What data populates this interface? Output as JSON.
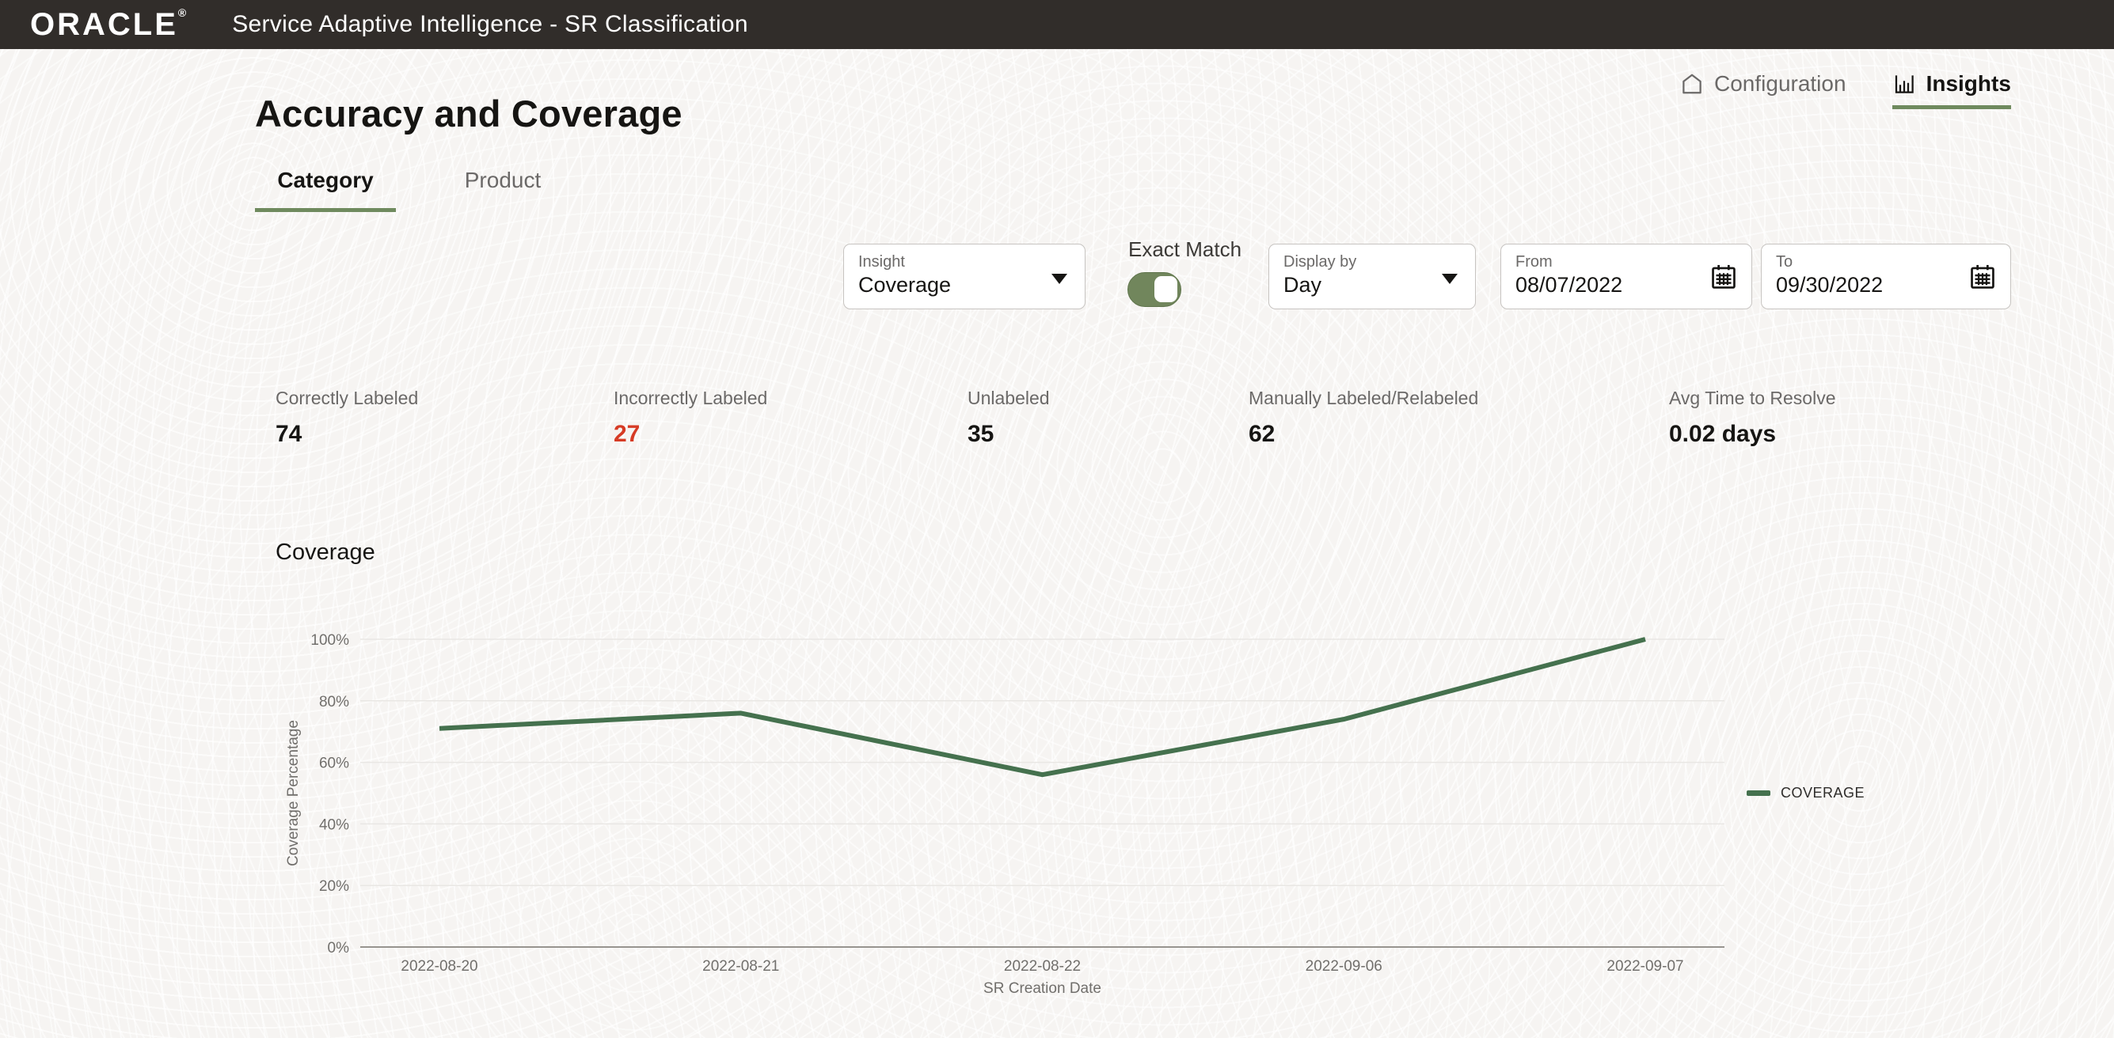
{
  "header": {
    "logo": "ORACLE",
    "registered": "®",
    "title": "Service Adaptive Intelligence - SR Classification"
  },
  "nav": {
    "configuration": "Configuration",
    "insights": "Insights"
  },
  "page": {
    "title": "Accuracy and Coverage"
  },
  "tabs": [
    {
      "label": "Category",
      "active": true
    },
    {
      "label": "Product",
      "active": false
    }
  ],
  "filters": {
    "insight": {
      "label": "Insight",
      "value": "Coverage"
    },
    "exact_match": {
      "label": "Exact Match",
      "on": true
    },
    "display_by": {
      "label": "Display by",
      "value": "Day"
    },
    "from": {
      "label": "From",
      "value": "08/07/2022"
    },
    "to": {
      "label": "To",
      "value": "09/30/2022"
    }
  },
  "stats": [
    {
      "label": "Correctly Labeled",
      "value": "74",
      "color": "#161513"
    },
    {
      "label": "Incorrectly Labeled",
      "value": "27",
      "color": "#d63b25"
    },
    {
      "label": "Unlabeled",
      "value": "35",
      "color": "#161513"
    },
    {
      "label": "Manually Labeled/Relabeled",
      "value": "62",
      "color": "#161513"
    },
    {
      "label": "Avg Time to Resolve",
      "value": "0.02 days",
      "color": "#161513"
    }
  ],
  "chart_data": {
    "type": "line",
    "title": "Coverage",
    "categories": [
      "2022-08-20",
      "2022-08-21",
      "2022-08-22",
      "2022-09-06",
      "2022-09-07"
    ],
    "series": [
      {
        "name": "COVERAGE",
        "values": [
          71,
          76,
          56,
          74,
          100
        ],
        "color": "#45714e"
      }
    ],
    "xlabel": "SR Creation Date",
    "ylabel": "Coverage Percentage",
    "ylim": [
      0,
      100
    ],
    "yticks": [
      0,
      20,
      40,
      60,
      80,
      100
    ],
    "ytick_format": "%",
    "grid": true,
    "legend_position": "right"
  },
  "colors": {
    "header_bg": "#312d2a",
    "accent_green": "#6f8a5e",
    "line_green": "#45714e",
    "danger_red": "#d63b25"
  }
}
